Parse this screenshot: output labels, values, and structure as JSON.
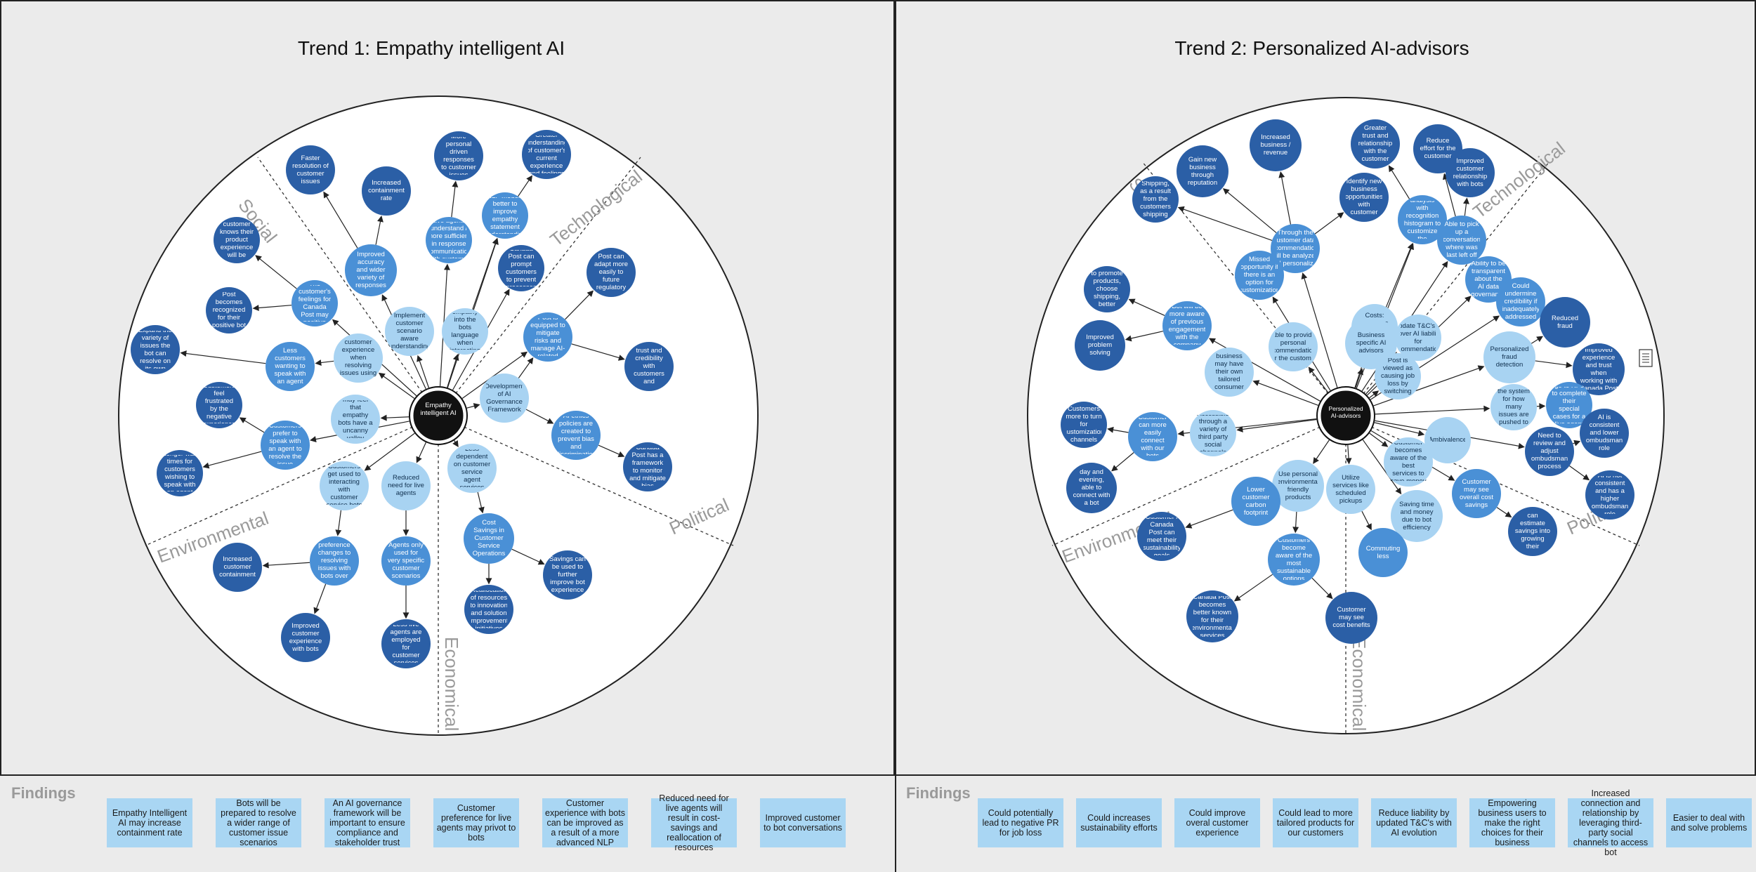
{
  "trend1": {
    "title": "Trend 1:  Empathy intelligent AI",
    "sectors": {
      "social": "Social",
      "technological": "Technological",
      "environmental": "Environmental",
      "political": "Political",
      "economical": "Economical"
    },
    "center": "Empathy intelligent AI",
    "findings_label": "Findings",
    "findings": [
      "Empathy Intelligent AI may increase containment rate",
      "Bots will be prepared to resolve a wider range of customer issue scenarios",
      "An AI governance framework will be important to ensure compliance and stakeholder trust",
      "Customer preference for live agents may privot to bots",
      "Customer experience with bots can be improved as a result of a more advanced NLP",
      "Reduced need for live agents will result in cost-savings and reallocation of resources",
      "Improved customer to bot conversations"
    ],
    "nodes": [
      "Faster resolution of customer issues",
      "Increased containment rate",
      "More personal driven responses to customer issues",
      "Greater understanding of customer's current experience and feelings",
      "Improved accuracy and wider variety of responses",
      "Live agents understand / more sufficient in response communication with customer",
      "NLP models better to improve empathy statement understanding",
      "The customer knows their product experience will be friendly",
      "The customer's feelings for Canada Post may positive",
      "Implement customer scenario aware understanding",
      "Canada Post builds empathy into the bots language when interacting with customers",
      "Canada Post can prompt customers to prevent processes",
      "Canada Post can adapt more easily to future regulatory changes",
      "Canada Post becomes recognized for their positive bot experiences",
      "Improved customer experience when resolving issues using bot",
      "Canada Post is equipped to mitigate risks and manage AI-related incidents",
      "Expand the variety of issues the bot can resolve on its own",
      "Less customers wanting to speak with an agent",
      "Development of AI Governance Framework",
      "Ensures trust and credibility with customers and stakeholders",
      "Customers feel frustrated by the negative experience",
      "Customers may feel that empathy bots have a uncanny valley feeling",
      "AI ethics policies are created to prevent bias and discrimination",
      "Customers prefer to speak with an agent to resolve the issue",
      "Canada Post has a framework to monitor and mitigate bias",
      "Longer wait times for customers wishing to speak with an agent",
      "Customers get used to interacting with customer service bots",
      "Reduced need for live agents",
      "Less dependent on customer service agent services",
      "Customer preference changes to resolving issues with bots over humans",
      "Agents only used for very specific customer scenarios",
      "Cost Savings in Customer Service Operations",
      "Increased customer containment",
      "Improved customer experience with bots",
      "Less live agents are employed for customer services",
      "Reallocation of resources to innovation and solution improvement initiatives",
      "Savings can be used to further improve bot experience"
    ]
  },
  "trend2": {
    "title": "Trend 2:  Personalized AI-advisors",
    "sectors": {
      "social": "Social",
      "technological": "Technological",
      "environmental": "Environmental",
      "political": "Political",
      "economical": "Economical"
    },
    "center": "Personalized AI-advisors",
    "findings_label": "Findings",
    "findings": [
      "Could potentially lead to negative PR for job loss",
      "Could increases sustainability efforts",
      "Could improve overal customer experience",
      "Could lead to more tailored products for our customers",
      "Reduce liability by updated T&C's with AI evolution",
      "Empowering business users to make the right choices for their business",
      "Increased connection and relationship by leveraging third-party social channels to access bot",
      "Easier to deal with and solve problems"
    ],
    "nodes": [
      "Increased business / revenue",
      "Greater trust and relationship with the customer",
      "Reduce effort for the customer",
      "Gain new business through reputation",
      "Identify new business opportunities with customer",
      "Improved customer relationship with bots",
      "Batch Shipping, as a result from the customers shipping data",
      "Through the customer data, recommendations will be analyzed and personalized",
      "Market analysis with recognition histogram to customize the experience",
      "Able to pick up a conversation where was last left off",
      "Ability to be transparent about the AI data governance",
      "The ability to promote products, choose shipping, better plans",
      "Missed opportunity if there is an option for customization",
      "Bot will be more aware of previous engagement with the company",
      "Costs: Business specific AI advisors",
      "Update T&C's to cover AI liability for recommendations",
      "Could undermine credibility if inadequately addressed",
      "Reduced fraud",
      "Improved problem solving",
      "Each business may have their own tailored consumer bots",
      "Able to provide personal recommendations for the customer",
      "Business specific AI advisors",
      "Canada Post is viewed as causing job loss by switching to AI",
      "Personalized fraud detection",
      "Improved experience and trust when working with Canada Post",
      "Customers more to turn for customization channels",
      "Accessible through a variety of third party social channels",
      "Adjusting the system for how many issues are pushed to live agents",
      "Customers go to RPs to complete their special cases for a live agent as needed",
      "Customer can more easily connect with our bots",
      "Customer becomes aware of the best services to save money",
      "Ambivalence",
      "Need to review and adjust ombudsman process",
      "AI is consistent and lower ombudsman role",
      "Increasing convenience, day and evening, able to connect with a bot anywhere at any time",
      "Use personal environmental friendly products",
      "Utilize services like scheduled pickups",
      "Lower customer carbon footprint",
      "Saving time and money due to bot efficiency",
      "Customer may see overall cost savings",
      "AI is not consistent and has a higher ombudsman role",
      "Customer / Canada Post can meet their sustainability goals",
      "Customers become aware of the most sustainable options",
      "Commuting less",
      "Customer can estimate savings into growing their business",
      "Canada Post becomes better known for their environmental services",
      "Customer may see cost benefits"
    ]
  }
}
